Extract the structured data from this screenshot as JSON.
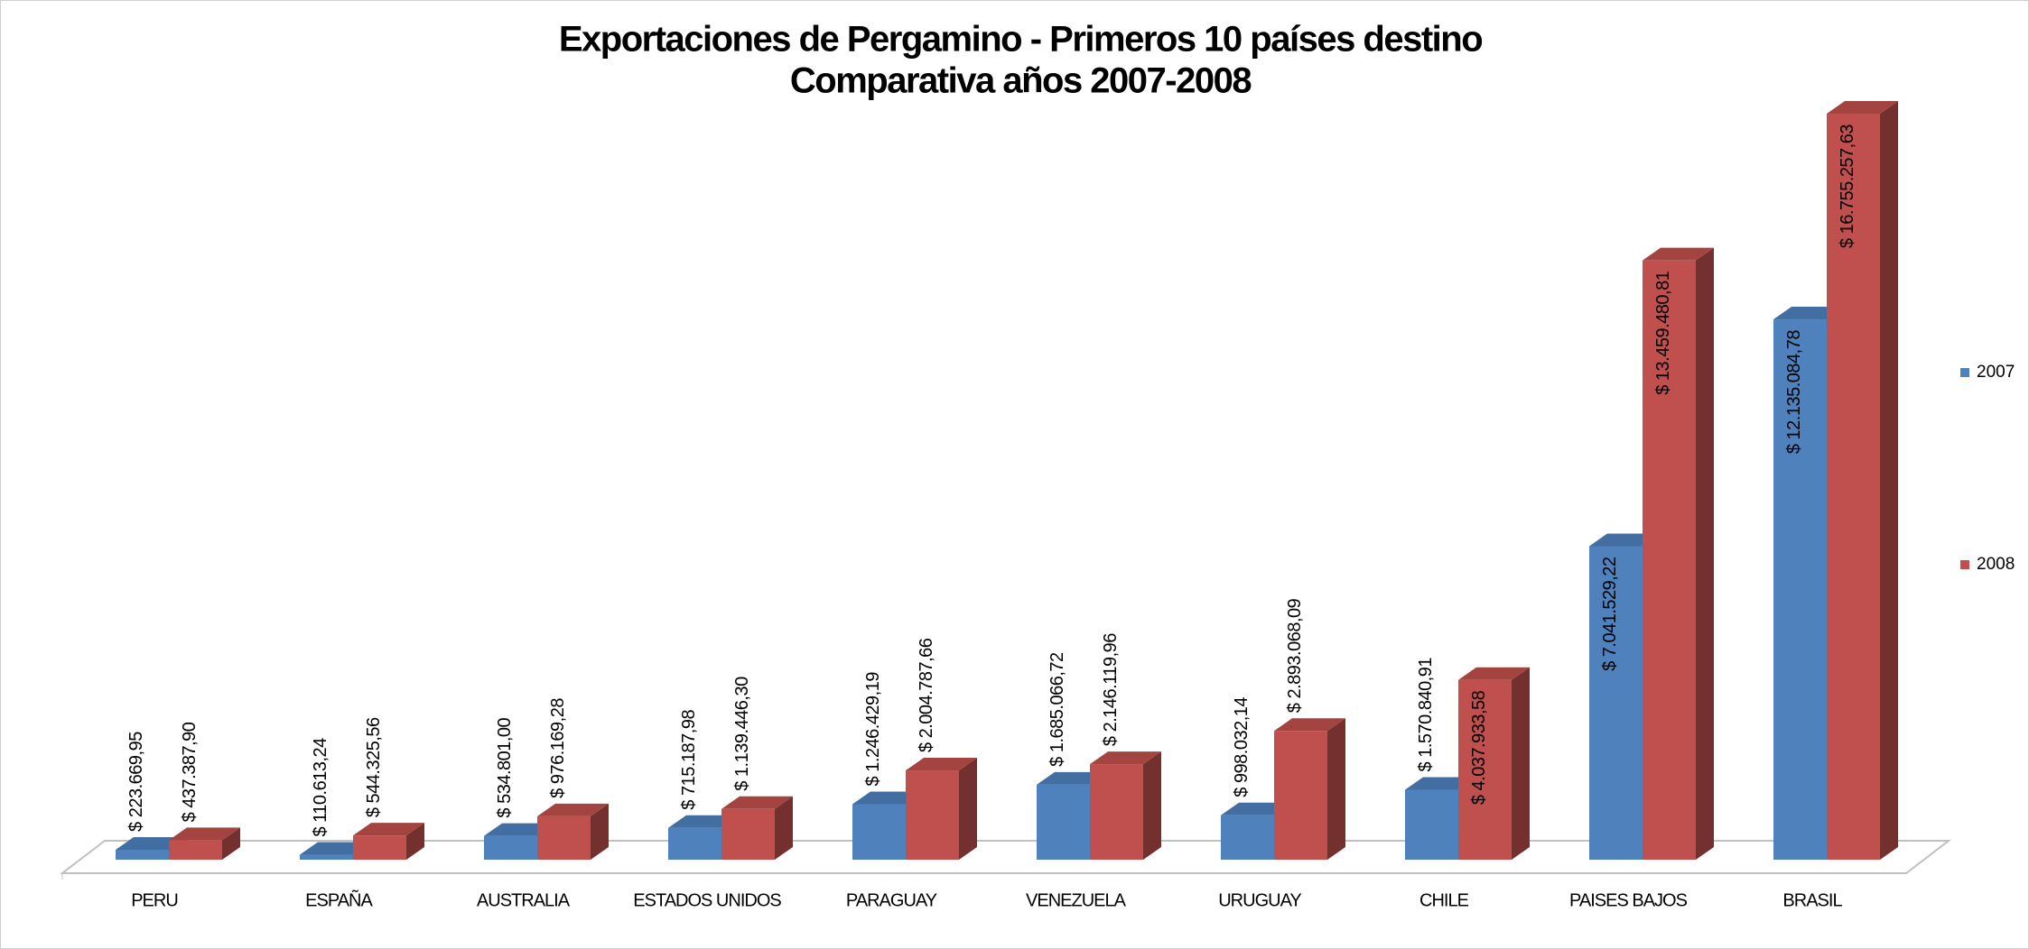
{
  "chart_data": {
    "type": "bar3d",
    "title": "Exportaciones de Pergamino - Primeros 10 países destino",
    "subtitle": "Comparativa años 2007-2008",
    "categories": [
      "PERU",
      "ESPAÑA",
      "AUSTRALIA",
      "ESTADOS UNIDOS",
      "PARAGUAY",
      "VENEZUELA",
      "URUGUAY",
      "CHILE",
      "PAISES BAJOS",
      "BRASIL"
    ],
    "series": [
      {
        "name": "2007",
        "color": "#4f81bd",
        "values": [
          223669.95,
          110613.24,
          534801.0,
          715187.98,
          1246429.19,
          1685066.72,
          998032.14,
          1570840.91,
          7041529.22,
          12135084.78
        ],
        "value_labels": [
          "$ 223.669,95",
          "$ 110.613,24",
          "$ 534.801,00",
          "$ 715.187,98",
          "$ 1.246.429,19",
          "$ 1.685.066,72",
          "$ 998.032,14",
          "$ 1.570.840,91",
          "$ 7.041.529,22",
          "$ 12.135.084,78"
        ]
      },
      {
        "name": "2008",
        "color": "#c0504d",
        "values": [
          437387.9,
          544325.56,
          976169.28,
          1139446.3,
          2004787.66,
          2146119.96,
          2893068.09,
          4037933.58,
          13459480.81,
          16755257.63
        ],
        "value_labels": [
          "$ 437.387,90",
          "$ 544.325,56",
          "$ 976.169,28",
          "$ 1.139.446,30",
          "$ 2.004.787,66",
          "$ 2.146.119,96",
          "$ 2.893.068,09",
          "$ 4.037.933,58",
          "$ 13.459.480,81",
          "$ 16.755.257,63"
        ]
      }
    ],
    "legend": "right"
  }
}
